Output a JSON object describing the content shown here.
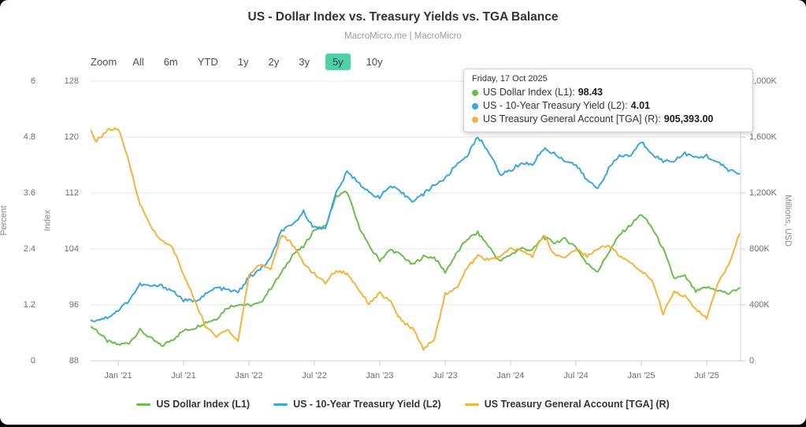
{
  "header": {
    "title": "US - Dollar Index vs. Treasury Yields vs. TGA Balance",
    "subtitle": "MacroMicro.me | MacroMicro"
  },
  "toolbar": {
    "zoom_label": "Zoom",
    "ranges": [
      "All",
      "6m",
      "YTD",
      "1y",
      "2y",
      "3y",
      "5y",
      "10y"
    ],
    "active_range": "5y",
    "active_bg": "#4ed1a5"
  },
  "tooltip": {
    "date": "Friday, 17 Oct 2025",
    "rows": [
      {
        "label": "US Dollar Index (L1):",
        "value": "98.43",
        "color": "#6cbe4c"
      },
      {
        "label": "US - 10-Year Treasury Yield (L2):",
        "value": "4.01",
        "color": "#3ba7d9"
      },
      {
        "label": "US Treasury General Account [TGA] (R):",
        "value": "905,393.00",
        "color": "#f3b33d"
      }
    ]
  },
  "legend": [
    {
      "label": "US Dollar Index (L1)",
      "color": "#6cbe4c"
    },
    {
      "label": "US - 10-Year Treasury Yield (L2)",
      "color": "#3ba7d9"
    },
    {
      "label": "US Treasury General Account [TGA] (R)",
      "color": "#f3b33d"
    }
  ],
  "chart_data": {
    "type": "line",
    "title": "US - Dollar Index vs. Treasury Yields vs. TGA Balance",
    "x_tick_labels": [
      "Jan '21",
      "Jul '21",
      "Jan '22",
      "Jul '22",
      "Jan '23",
      "Jul '23",
      "Jan '24",
      "Jul '24",
      "Jan '25",
      "Jul '25"
    ],
    "axes": {
      "percent": {
        "title": "Percent",
        "ticks": [
          "6",
          "4.8",
          "3.6",
          "2.4",
          "1.2",
          "0"
        ],
        "min": 0,
        "max": 6
      },
      "index": {
        "title": "Index",
        "ticks": [
          "128",
          "120",
          "112",
          "104",
          "96",
          "88"
        ],
        "min": 88,
        "max": 128
      },
      "right": {
        "title": "Millions, USD",
        "ticks": [
          "2,000K",
          "1,600K",
          "1,200K",
          "800K",
          "400K",
          "0"
        ],
        "min": 0,
        "max": 2000
      }
    },
    "grid": "horizontal-only",
    "legend_position": "bottom",
    "months": [
      "2020-10",
      "2020-11",
      "2020-12",
      "2021-01",
      "2021-02",
      "2021-03",
      "2021-04",
      "2021-05",
      "2021-06",
      "2021-07",
      "2021-08",
      "2021-09",
      "2021-10",
      "2021-11",
      "2021-12",
      "2022-01",
      "2022-02",
      "2022-03",
      "2022-04",
      "2022-05",
      "2022-06",
      "2022-07",
      "2022-08",
      "2022-09",
      "2022-10",
      "2022-11",
      "2022-12",
      "2023-01",
      "2023-02",
      "2023-03",
      "2023-04",
      "2023-05",
      "2023-06",
      "2023-07",
      "2023-08",
      "2023-09",
      "2023-10",
      "2023-11",
      "2023-12",
      "2024-01",
      "2024-02",
      "2024-03",
      "2024-04",
      "2024-05",
      "2024-06",
      "2024-07",
      "2024-08",
      "2024-09",
      "2024-10",
      "2024-11",
      "2024-12",
      "2025-01",
      "2025-02",
      "2025-03",
      "2025-04",
      "2025-05",
      "2025-06",
      "2025-07",
      "2025-08",
      "2025-09",
      "2025-10"
    ],
    "series": [
      {
        "name": "US Dollar Index (L1)",
        "axis": "index",
        "color": "#6cbe4c",
        "last_value": 98.43,
        "values": [
          93.4,
          92.4,
          90.8,
          90.3,
          90.6,
          92.4,
          91.2,
          90.1,
          91.1,
          92.3,
          92.7,
          93.5,
          94.0,
          95.6,
          96.1,
          95.9,
          96.2,
          98.4,
          100.6,
          103.2,
          104.3,
          106.8,
          107.2,
          111.5,
          112.2,
          107.6,
          104.4,
          102.4,
          103.9,
          103.1,
          101.7,
          102.9,
          102.8,
          100.7,
          103.2,
          105.4,
          106.3,
          104.4,
          102.2,
          103.2,
          104.1,
          103.8,
          105.7,
          104.9,
          105.4,
          104.3,
          101.9,
          100.8,
          103.5,
          106.0,
          107.4,
          109.0,
          107.0,
          104.0,
          99.8,
          100.1,
          97.9,
          98.5,
          98.1,
          97.6,
          98.43
        ]
      },
      {
        "name": "US - 10-Year Treasury Yield (L2)",
        "axis": "percent",
        "color": "#3ba7d9",
        "last_value": 4.01,
        "values": [
          0.84,
          0.88,
          0.93,
          1.08,
          1.3,
          1.64,
          1.6,
          1.61,
          1.5,
          1.3,
          1.28,
          1.42,
          1.57,
          1.52,
          1.47,
          1.79,
          1.95,
          2.2,
          2.8,
          2.9,
          3.2,
          2.85,
          2.85,
          3.6,
          4.05,
          3.85,
          3.6,
          3.52,
          3.75,
          3.6,
          3.44,
          3.57,
          3.78,
          3.9,
          4.2,
          4.4,
          4.8,
          4.5,
          4.0,
          4.08,
          4.25,
          4.21,
          4.55,
          4.45,
          4.3,
          4.2,
          3.88,
          3.7,
          4.12,
          4.4,
          4.4,
          4.7,
          4.45,
          4.28,
          4.3,
          4.45,
          4.35,
          4.4,
          4.25,
          4.1,
          4.01
        ]
      },
      {
        "name": "US Treasury General Account [TGA] (R)",
        "axis": "right",
        "color": "#f3b33d",
        "last_value": 905.393,
        "values": [
          1711,
          1570,
          1650,
          1660,
          1420,
          1120,
          960,
          855,
          810,
          615,
          440,
          250,
          170,
          230,
          140,
          615,
          690,
          660,
          905,
          830,
          700,
          620,
          560,
          645,
          625,
          520,
          410,
          485,
          420,
          280,
          235,
          85,
          150,
          480,
          515,
          665,
          750,
          720,
          745,
          800,
          790,
          745,
          905,
          760,
          740,
          800,
          750,
          800,
          830,
          750,
          700,
          640,
          580,
          340,
          500,
          460,
          370,
          305,
          545,
          690,
          905.4
        ]
      }
    ]
  }
}
